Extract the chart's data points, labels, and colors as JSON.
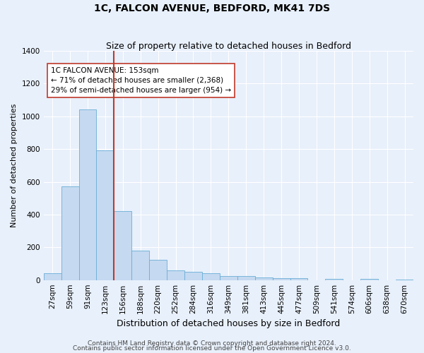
{
  "title": "1C, FALCON AVENUE, BEDFORD, MK41 7DS",
  "subtitle": "Size of property relative to detached houses in Bedford",
  "xlabel": "Distribution of detached houses by size in Bedford",
  "ylabel": "Number of detached properties",
  "categories": [
    "27sqm",
    "59sqm",
    "91sqm",
    "123sqm",
    "156sqm",
    "188sqm",
    "220sqm",
    "252sqm",
    "284sqm",
    "316sqm",
    "349sqm",
    "381sqm",
    "413sqm",
    "445sqm",
    "477sqm",
    "509sqm",
    "541sqm",
    "574sqm",
    "606sqm",
    "638sqm",
    "670sqm"
  ],
  "bar_heights": [
    42,
    572,
    1042,
    793,
    420,
    181,
    122,
    58,
    52,
    42,
    25,
    23,
    18,
    10,
    10,
    0,
    8,
    0,
    8,
    0,
    5
  ],
  "bar_color": "#c5d9f0",
  "bar_edge_color": "#6aaed6",
  "vline_color": "#c0392b",
  "vline_index": 3.5,
  "annotation_text": "1C FALCON AVENUE: 153sqm\n← 71% of detached houses are smaller (2,368)\n29% of semi-detached houses are larger (954) →",
  "annotation_box_facecolor": "#ffffff",
  "annotation_box_edgecolor": "#c0392b",
  "ylim": [
    0,
    1400
  ],
  "yticks": [
    0,
    200,
    400,
    600,
    800,
    1000,
    1200,
    1400
  ],
  "footnote1": "Contains HM Land Registry data © Crown copyright and database right 2024.",
  "footnote2": "Contains public sector information licensed under the Open Government Licence v3.0.",
  "background_color": "#e8f0fb",
  "plot_bg_color": "#e8f0fb",
  "grid_color": "#ffffff",
  "title_fontsize": 10,
  "subtitle_fontsize": 9,
  "xlabel_fontsize": 9,
  "ylabel_fontsize": 8,
  "tick_fontsize": 7.5,
  "annotation_fontsize": 7.5,
  "footnote_fontsize": 6.5
}
